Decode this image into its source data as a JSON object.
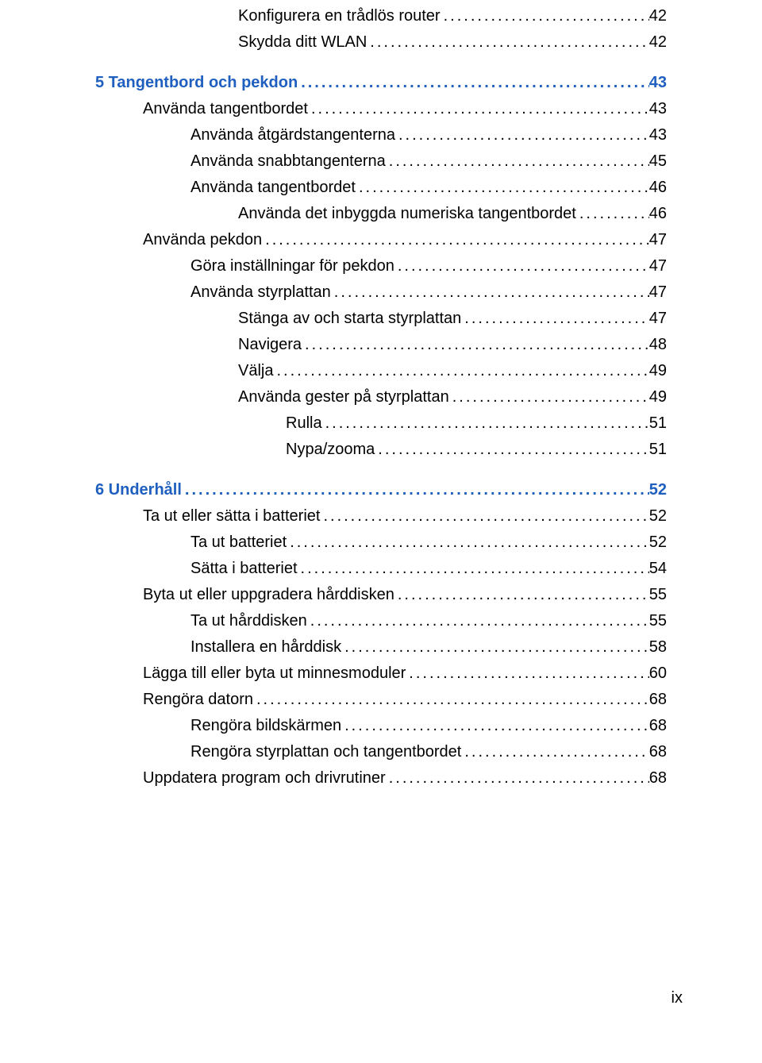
{
  "colors": {
    "heading": "#1f5fbf",
    "body": "#000000",
    "background": "#ffffff"
  },
  "entries": [
    {
      "text": "Konfigurera en trådlös router",
      "page": "42",
      "indent": 3,
      "bold": false,
      "link": false,
      "space": false
    },
    {
      "text": "Skydda ditt WLAN",
      "page": "42",
      "indent": 3,
      "bold": false,
      "link": false,
      "space": true
    },
    {
      "text": "5  Tangentbord och pekdon",
      "page": "43",
      "indent": 0,
      "bold": true,
      "link": true,
      "space": false
    },
    {
      "text": "Använda tangentbordet",
      "page": "43",
      "indent": 1,
      "bold": false,
      "link": false,
      "space": false
    },
    {
      "text": "Använda åtgärdstangenterna",
      "page": "43",
      "indent": 2,
      "bold": false,
      "link": false,
      "space": false
    },
    {
      "text": "Använda snabbtangenterna",
      "page": "45",
      "indent": 2,
      "bold": false,
      "link": false,
      "space": false
    },
    {
      "text": "Använda tangentbordet",
      "page": "46",
      "indent": 2,
      "bold": false,
      "link": false,
      "space": false
    },
    {
      "text": "Använda det inbyggda numeriska tangentbordet",
      "page": "46",
      "indent": 3,
      "bold": false,
      "link": false,
      "space": false
    },
    {
      "text": "Använda pekdon",
      "page": "47",
      "indent": 1,
      "bold": false,
      "link": false,
      "space": false
    },
    {
      "text": "Göra inställningar för pekdon",
      "page": "47",
      "indent": 2,
      "bold": false,
      "link": false,
      "space": false
    },
    {
      "text": "Använda styrplattan",
      "page": "47",
      "indent": 2,
      "bold": false,
      "link": false,
      "space": false
    },
    {
      "text": "Stänga av och starta styrplattan",
      "page": "47",
      "indent": 3,
      "bold": false,
      "link": false,
      "space": false
    },
    {
      "text": "Navigera",
      "page": "48",
      "indent": 3,
      "bold": false,
      "link": false,
      "space": false
    },
    {
      "text": "Välja",
      "page": "49",
      "indent": 3,
      "bold": false,
      "link": false,
      "space": false
    },
    {
      "text": "Använda gester på styrplattan",
      "page": "49",
      "indent": 3,
      "bold": false,
      "link": false,
      "space": false
    },
    {
      "text": "Rulla",
      "page": "51",
      "indent": 4,
      "bold": false,
      "link": false,
      "space": false
    },
    {
      "text": "Nypa/zooma",
      "page": "51",
      "indent": 4,
      "bold": false,
      "link": false,
      "space": true
    },
    {
      "text": "6  Underhåll",
      "page": "52",
      "indent": 0,
      "bold": true,
      "link": true,
      "space": false
    },
    {
      "text": "Ta ut eller sätta i batteriet",
      "page": "52",
      "indent": 1,
      "bold": false,
      "link": false,
      "space": false
    },
    {
      "text": "Ta ut batteriet",
      "page": "52",
      "indent": 2,
      "bold": false,
      "link": false,
      "space": false
    },
    {
      "text": "Sätta i batteriet",
      "page": "54",
      "indent": 2,
      "bold": false,
      "link": false,
      "space": false
    },
    {
      "text": "Byta ut eller uppgradera hårddisken",
      "page": "55",
      "indent": 1,
      "bold": false,
      "link": false,
      "space": false
    },
    {
      "text": "Ta ut hårddisken",
      "page": "55",
      "indent": 2,
      "bold": false,
      "link": false,
      "space": false
    },
    {
      "text": "Installera en hårddisk",
      "page": "58",
      "indent": 2,
      "bold": false,
      "link": false,
      "space": false
    },
    {
      "text": "Lägga till eller byta ut minnesmoduler",
      "page": "60",
      "indent": 1,
      "bold": false,
      "link": false,
      "space": false
    },
    {
      "text": "Rengöra datorn",
      "page": "68",
      "indent": 1,
      "bold": false,
      "link": false,
      "space": false
    },
    {
      "text": "Rengöra bildskärmen",
      "page": "68",
      "indent": 2,
      "bold": false,
      "link": false,
      "space": false
    },
    {
      "text": "Rengöra styrplattan och tangentbordet",
      "page": "68",
      "indent": 2,
      "bold": false,
      "link": false,
      "space": false
    },
    {
      "text": "Uppdatera program och drivrutiner",
      "page": "68",
      "indent": 1,
      "bold": false,
      "link": false,
      "space": false
    }
  ],
  "footer": {
    "page_number": "ix"
  }
}
